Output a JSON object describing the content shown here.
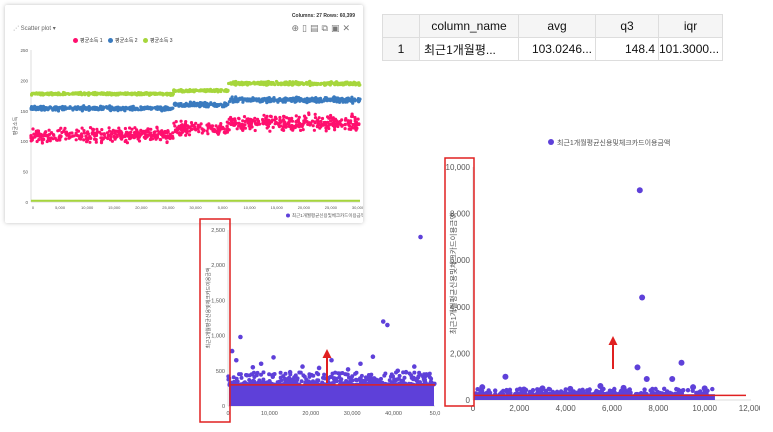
{
  "panel": {
    "meta": "Columns: 27   Rows: 60,399",
    "toolbar_label": "Scatter plot",
    "icons": [
      "zoom-icon",
      "new-icon",
      "image-icon",
      "copy-icon",
      "save-icon",
      "close-icon"
    ]
  },
  "table": {
    "columns": [
      "column_name",
      "avg",
      "q3",
      "iqr"
    ],
    "rows": [
      [
        "1",
        "최근1개월평...",
        "103.0246...",
        "148.4",
        "101.3000..."
      ]
    ]
  },
  "chart_data": [
    {
      "type": "scatter",
      "title": "",
      "ylabel": "평균소득",
      "xlabel": "",
      "xlim": [
        0,
        30000
      ],
      "ylim": [
        0,
        250
      ],
      "x_ticks": [
        "0",
        "5,000",
        "10,000",
        "15,000",
        "20,000",
        "25,000",
        "30,000",
        "5,000",
        "10,000",
        "15,000",
        "20,000",
        "25,000",
        "30,000"
      ],
      "y_ticks": [
        "0",
        "50",
        "100",
        "150",
        "200",
        "250"
      ],
      "series": [
        {
          "name": "평균소득 1",
          "color": "#ff0f6e",
          "bands": [
            {
              "x": [
                0,
                13000
              ],
              "center": 110,
              "spread": 15
            },
            {
              "x": [
                13000,
                18000
              ],
              "center": 120,
              "spread": 15
            },
            {
              "x": [
                18000,
                30000
              ],
              "center": 130,
              "spread": 18
            }
          ]
        },
        {
          "name": "평균소득 2",
          "color": "#3a7bbf",
          "bands": [
            {
              "x": [
                0,
                13000
              ],
              "center": 154,
              "spread": 5
            },
            {
              "x": [
                13000,
                18000
              ],
              "center": 160,
              "spread": 5
            },
            {
              "x": [
                18000,
                30000
              ],
              "center": 168,
              "spread": 6
            }
          ]
        },
        {
          "name": "평균소득 3",
          "color": "#a6d63c",
          "bands": [
            {
              "x": [
                0,
                13000
              ],
              "center": 178,
              "spread": 3
            },
            {
              "x": [
                13000,
                18000
              ],
              "center": 183,
              "spread": 3
            },
            {
              "x": [
                18000,
                30000
              ],
              "center": 195,
              "spread": 4
            }
          ],
          "extra_line_y": 2
        }
      ]
    },
    {
      "type": "scatter",
      "legend": "최근1개월평균신용및체크카드이용금액",
      "ylabel": "최근1개월평균신용및체크카드이용금액",
      "xlim": [
        0,
        50000
      ],
      "ylim": [
        0,
        2500
      ],
      "x_ticks": [
        "0",
        "10,000",
        "20,000",
        "30,000",
        "40,000",
        "50,0"
      ],
      "y_ticks": [
        "0",
        "500",
        "1,000",
        "1,500",
        "2,000",
        "2,500"
      ],
      "color": "#5e40d9",
      "dense_band": [
        0,
        300
      ],
      "outliers": [
        [
          46500,
          2400
        ],
        [
          37500,
          1200
        ],
        [
          38500,
          1150
        ],
        [
          3000,
          980
        ],
        [
          1000,
          780
        ],
        [
          35000,
          700
        ],
        [
          11000,
          690
        ],
        [
          25000,
          650
        ],
        [
          8000,
          600
        ],
        [
          18000,
          560
        ],
        [
          22000,
          540
        ],
        [
          29000,
          520
        ],
        [
          41000,
          500
        ],
        [
          15000,
          480
        ],
        [
          6000,
          550
        ],
        [
          32000,
          600
        ],
        [
          45000,
          560
        ],
        [
          2000,
          650
        ],
        [
          43000,
          480
        ],
        [
          27000,
          460
        ]
      ],
      "threshold_y": 300
    },
    {
      "type": "scatter",
      "legend": "최근1개월평균신용및체크카드이용금액",
      "ylabel": "최근1개월평균신용및체크카드이용금액",
      "xlim": [
        0,
        12000
      ],
      "ylim": [
        0,
        10000
      ],
      "x_ticks": [
        "0",
        "2,000",
        "4,000",
        "6,000",
        "8,000",
        "10,000",
        "12,000"
      ],
      "y_ticks": [
        "0",
        "2,000",
        "4,000",
        "6,000",
        "8,000",
        "10,000"
      ],
      "color": "#5e40d9",
      "dense_band": [
        0,
        250
      ],
      "outliers": [
        [
          7200,
          9000
        ],
        [
          7300,
          4400
        ],
        [
          7100,
          1400
        ],
        [
          9000,
          1600
        ],
        [
          1400,
          1000
        ],
        [
          7500,
          900
        ],
        [
          8600,
          900
        ],
        [
          5500,
          600
        ],
        [
          3000,
          500
        ],
        [
          9500,
          550
        ],
        [
          10000,
          500
        ],
        [
          400,
          550
        ],
        [
          6500,
          520
        ],
        [
          2200,
          450
        ],
        [
          4200,
          480
        ]
      ],
      "threshold_y": 200
    }
  ]
}
